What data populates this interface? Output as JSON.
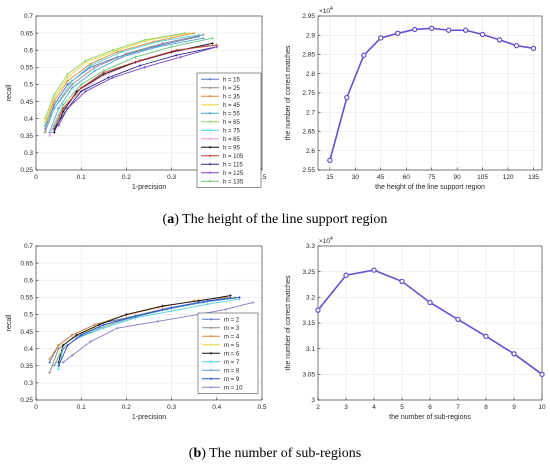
{
  "captions": {
    "a_label": "a",
    "a_text": "The height of the line support region",
    "b_label": "b",
    "b_text": "The number of sub-regions"
  },
  "chart_data": [
    {
      "id": "a-left",
      "type": "line",
      "xlabel": "1-precision",
      "ylabel": "recall",
      "xlim": [
        0,
        0.5
      ],
      "ylim": [
        0.25,
        0.7
      ],
      "xticks": [
        0,
        0.1,
        0.2,
        0.3,
        0.4,
        0.5
      ],
      "xtick_labels": [
        "0",
        "0.1",
        "0.2",
        "0.3",
        "0.4",
        "0.5"
      ],
      "yticks": [
        0.25,
        0.3,
        0.35,
        0.4,
        0.45,
        0.5,
        0.55,
        0.6,
        0.65,
        0.7
      ],
      "ytick_labels": [
        "0.25",
        "0.3",
        "0.35",
        "0.4",
        "0.45",
        "0.5",
        "0.55",
        "0.6",
        "0.65",
        "0.7"
      ],
      "grid": true,
      "legend_position": "right",
      "series": [
        {
          "name": "h = 15",
          "color": "#5e72c9",
          "points": [
            [
              0.02,
              0.37
            ],
            [
              0.04,
              0.44
            ],
            [
              0.07,
              0.5
            ],
            [
              0.12,
              0.55
            ],
            [
              0.18,
              0.58
            ],
            [
              0.26,
              0.61
            ],
            [
              0.36,
              0.64
            ]
          ]
        },
        {
          "name": "h = 25",
          "color": "#8a8a8a",
          "points": [
            [
              0.02,
              0.36
            ],
            [
              0.04,
              0.43
            ],
            [
              0.08,
              0.5
            ],
            [
              0.13,
              0.55
            ],
            [
              0.2,
              0.59
            ],
            [
              0.28,
              0.62
            ],
            [
              0.37,
              0.645
            ]
          ]
        },
        {
          "name": "h = 35",
          "color": "#d98b3a",
          "points": [
            [
              0.02,
              0.38
            ],
            [
              0.04,
              0.45
            ],
            [
              0.07,
              0.51
            ],
            [
              0.12,
              0.56
            ],
            [
              0.18,
              0.595
            ],
            [
              0.26,
              0.625
            ],
            [
              0.35,
              0.65
            ]
          ]
        },
        {
          "name": "h = 45",
          "color": "#e6d740",
          "points": [
            [
              0.02,
              0.39
            ],
            [
              0.04,
              0.46
            ],
            [
              0.07,
              0.52
            ],
            [
              0.11,
              0.565
            ],
            [
              0.18,
              0.6
            ],
            [
              0.25,
              0.63
            ],
            [
              0.34,
              0.65
            ]
          ]
        },
        {
          "name": "h = 55",
          "color": "#45a7d8",
          "points": [
            [
              0.03,
              0.36
            ],
            [
              0.05,
              0.43
            ],
            [
              0.08,
              0.49
            ],
            [
              0.13,
              0.54
            ],
            [
              0.19,
              0.58
            ],
            [
              0.27,
              0.61
            ],
            [
              0.37,
              0.635
            ]
          ]
        },
        {
          "name": "h = 65",
          "color": "#8fd16b",
          "points": [
            [
              0.02,
              0.4
            ],
            [
              0.04,
              0.47
            ],
            [
              0.07,
              0.53
            ],
            [
              0.11,
              0.57
            ],
            [
              0.17,
              0.6
            ],
            [
              0.24,
              0.63
            ],
            [
              0.33,
              0.65
            ]
          ]
        },
        {
          "name": "h = 75",
          "color": "#4fd1d8",
          "points": [
            [
              0.02,
              0.38
            ],
            [
              0.05,
              0.45
            ],
            [
              0.08,
              0.51
            ],
            [
              0.12,
              0.555
            ],
            [
              0.19,
              0.595
            ],
            [
              0.27,
              0.625
            ],
            [
              0.36,
              0.645
            ]
          ]
        },
        {
          "name": "h = 85",
          "color": "#e89bd9",
          "points": [
            [
              0.03,
              0.35
            ],
            [
              0.05,
              0.41
            ],
            [
              0.09,
              0.47
            ],
            [
              0.14,
              0.52
            ],
            [
              0.21,
              0.56
            ],
            [
              0.29,
              0.59
            ],
            [
              0.38,
              0.615
            ]
          ]
        },
        {
          "name": "h = 95",
          "color": "#111111",
          "points": [
            [
              0.04,
              0.36
            ],
            [
              0.06,
              0.42
            ],
            [
              0.09,
              0.48
            ],
            [
              0.15,
              0.53
            ],
            [
              0.22,
              0.565
            ],
            [
              0.3,
              0.595
            ],
            [
              0.39,
              0.62
            ]
          ]
        },
        {
          "name": "h = 105",
          "color": "#c0392b",
          "points": [
            [
              0.04,
              0.37
            ],
            [
              0.06,
              0.43
            ],
            [
              0.1,
              0.49
            ],
            [
              0.15,
              0.535
            ],
            [
              0.23,
              0.57
            ],
            [
              0.31,
              0.6
            ],
            [
              0.4,
              0.615
            ]
          ]
        },
        {
          "name": "h = 115",
          "color": "#2c2c8a",
          "points": [
            [
              0.04,
              0.37
            ],
            [
              0.07,
              0.43
            ],
            [
              0.1,
              0.48
            ],
            [
              0.16,
              0.52
            ],
            [
              0.23,
              0.555
            ],
            [
              0.31,
              0.585
            ],
            [
              0.4,
              0.61
            ]
          ]
        },
        {
          "name": "h = 125",
          "color": "#7a45c8",
          "points": [
            [
              0.05,
              0.38
            ],
            [
              0.07,
              0.43
            ],
            [
              0.11,
              0.48
            ],
            [
              0.17,
              0.52
            ],
            [
              0.24,
              0.55
            ],
            [
              0.32,
              0.58
            ],
            [
              0.4,
              0.61
            ]
          ]
        },
        {
          "name": "h = 135",
          "color": "#69c27a",
          "points": [
            [
              0.04,
              0.38
            ],
            [
              0.06,
              0.44
            ],
            [
              0.1,
              0.5
            ],
            [
              0.15,
              0.54
            ],
            [
              0.22,
              0.58
            ],
            [
              0.3,
              0.61
            ],
            [
              0.39,
              0.635
            ]
          ]
        }
      ]
    },
    {
      "id": "a-right",
      "type": "line",
      "xlabel": "the height of the line support region",
      "ylabel": "the number of correct matches",
      "exponent_label": "×10^4",
      "xlim": [
        8,
        140
      ],
      "ylim": [
        2.55,
        2.95
      ],
      "xticks": [
        15,
        30,
        45,
        60,
        75,
        90,
        105,
        120,
        135
      ],
      "xtick_labels": [
        "15",
        "30",
        "45",
        "60",
        "75",
        "90",
        "105",
        "120",
        "135"
      ],
      "yticks": [
        2.55,
        2.6,
        2.65,
        2.7,
        2.75,
        2.8,
        2.85,
        2.9,
        2.95
      ],
      "ytick_labels": [
        "2.55",
        "2.6",
        "2.65",
        "2.7",
        "2.75",
        "2.8",
        "2.85",
        "2.9",
        "2.95"
      ],
      "grid": true,
      "series": [
        {
          "color": "#6a4ed0",
          "points": [
            [
              15,
              2.575
            ],
            [
              25,
              2.738
            ],
            [
              35,
              2.848
            ],
            [
              45,
              2.893
            ],
            [
              55,
              2.905
            ],
            [
              65,
              2.915
            ],
            [
              75,
              2.918
            ],
            [
              85,
              2.913
            ],
            [
              95,
              2.913
            ],
            [
              105,
              2.902
            ],
            [
              115,
              2.888
            ],
            [
              125,
              2.873
            ],
            [
              135,
              2.866
            ]
          ]
        }
      ]
    },
    {
      "id": "b-left",
      "type": "line",
      "xlabel": "1-precision",
      "ylabel": "recall",
      "xlim": [
        0,
        0.5
      ],
      "ylim": [
        0.25,
        0.7
      ],
      "xticks": [
        0,
        0.1,
        0.2,
        0.3,
        0.4,
        0.5
      ],
      "xtick_labels": [
        "0",
        "0.1",
        "0.2",
        "0.3",
        "0.4",
        "0.5"
      ],
      "yticks": [
        0.25,
        0.3,
        0.35,
        0.4,
        0.45,
        0.5,
        0.55,
        0.6,
        0.65,
        0.7
      ],
      "ytick_labels": [
        "0.25",
        "0.3",
        "0.35",
        "0.4",
        "0.45",
        "0.5",
        "0.55",
        "0.6",
        "0.65",
        "0.7"
      ],
      "grid": true,
      "legend_position": "bottom-right",
      "series": [
        {
          "name": "m = 2",
          "color": "#5e72c9",
          "points": [
            [
              0.03,
              0.36
            ],
            [
              0.05,
              0.41
            ],
            [
              0.08,
              0.44
            ],
            [
              0.13,
              0.47
            ],
            [
              0.2,
              0.49
            ],
            [
              0.28,
              0.515
            ],
            [
              0.36,
              0.535
            ],
            [
              0.43,
              0.55
            ]
          ]
        },
        {
          "name": "m = 3",
          "color": "#8a8a8a",
          "points": [
            [
              0.03,
              0.33
            ],
            [
              0.05,
              0.4
            ],
            [
              0.08,
              0.43
            ],
            [
              0.13,
              0.46
            ],
            [
              0.2,
              0.49
            ],
            [
              0.28,
              0.515
            ],
            [
              0.36,
              0.535
            ],
            [
              0.44,
              0.55
            ]
          ]
        },
        {
          "name": "m = 4",
          "color": "#d98b3a",
          "points": [
            [
              0.03,
              0.37
            ],
            [
              0.05,
              0.41
            ],
            [
              0.08,
              0.44
            ],
            [
              0.13,
              0.47
            ],
            [
              0.19,
              0.495
            ],
            [
              0.27,
              0.52
            ],
            [
              0.35,
              0.54
            ],
            [
              0.42,
              0.55
            ]
          ]
        },
        {
          "name": "m = 5",
          "color": "#e6d740",
          "points": [
            [
              0.04,
              0.35
            ],
            [
              0.06,
              0.41
            ],
            [
              0.09,
              0.44
            ],
            [
              0.14,
              0.465
            ],
            [
              0.21,
              0.49
            ],
            [
              0.29,
              0.515
            ],
            [
              0.37,
              0.535
            ],
            [
              0.44,
              0.55
            ]
          ]
        },
        {
          "name": "m = 6",
          "color": "#111111",
          "points": [
            [
              0.05,
              0.36
            ],
            [
              0.06,
              0.41
            ],
            [
              0.09,
              0.44
            ],
            [
              0.14,
              0.47
            ],
            [
              0.2,
              0.5
            ],
            [
              0.28,
              0.525
            ],
            [
              0.36,
              0.54
            ],
            [
              0.43,
              0.555
            ]
          ]
        },
        {
          "name": "m = 7",
          "color": "#4fd1d8",
          "points": [
            [
              0.05,
              0.34
            ],
            [
              0.06,
              0.4
            ],
            [
              0.09,
              0.43
            ],
            [
              0.15,
              0.46
            ],
            [
              0.22,
              0.49
            ],
            [
              0.3,
              0.51
            ],
            [
              0.38,
              0.53
            ],
            [
              0.45,
              0.545
            ]
          ]
        },
        {
          "name": "m = 8",
          "color": "#5a9bd5",
          "points": [
            [
              0.04,
              0.35
            ],
            [
              0.06,
              0.4
            ],
            [
              0.09,
              0.43
            ],
            [
              0.14,
              0.46
            ],
            [
              0.21,
              0.49
            ],
            [
              0.29,
              0.515
            ],
            [
              0.37,
              0.535
            ],
            [
              0.44,
              0.548
            ]
          ]
        },
        {
          "name": "m = 9",
          "color": "#2a4fd0",
          "points": [
            [
              0.05,
              0.35
            ],
            [
              0.07,
              0.41
            ],
            [
              0.1,
              0.44
            ],
            [
              0.15,
              0.47
            ],
            [
              0.22,
              0.495
            ],
            [
              0.3,
              0.52
            ],
            [
              0.38,
              0.54
            ],
            [
              0.45,
              0.55
            ]
          ]
        },
        {
          "name": "m = 10",
          "color": "#8e7cc3",
          "points": [
            [
              0.06,
              0.36
            ],
            [
              0.08,
              0.38
            ],
            [
              0.12,
              0.42
            ],
            [
              0.18,
              0.46
            ],
            [
              0.27,
              0.48
            ],
            [
              0.36,
              0.5
            ],
            [
              0.42,
              0.515
            ],
            [
              0.48,
              0.535
            ]
          ]
        }
      ]
    },
    {
      "id": "b-right",
      "type": "line",
      "xlabel": "the number of sub-regions",
      "ylabel": "the number of correct matches",
      "exponent_label": "×10^4",
      "xlim": [
        2,
        10
      ],
      "ylim": [
        3.0,
        3.3
      ],
      "xticks": [
        2,
        3,
        4,
        5,
        6,
        7,
        8,
        9,
        10
      ],
      "xtick_labels": [
        "2",
        "3",
        "4",
        "5",
        "6",
        "7",
        "8",
        "9",
        "10"
      ],
      "yticks": [
        3.0,
        3.05,
        3.1,
        3.15,
        3.2,
        3.25,
        3.3
      ],
      "ytick_labels": [
        "3",
        "3.05",
        "3.1",
        "3.15",
        "3.2",
        "3.25",
        "3.3"
      ],
      "grid": true,
      "series": [
        {
          "color": "#6a4ed0",
          "points": [
            [
              2,
              3.175
            ],
            [
              3,
              3.243
            ],
            [
              4,
              3.253
            ],
            [
              5,
              3.231
            ],
            [
              6,
              3.19
            ],
            [
              7,
              3.157
            ],
            [
              8,
              3.124
            ],
            [
              9,
              3.09
            ],
            [
              10,
              3.05
            ]
          ]
        }
      ]
    }
  ]
}
